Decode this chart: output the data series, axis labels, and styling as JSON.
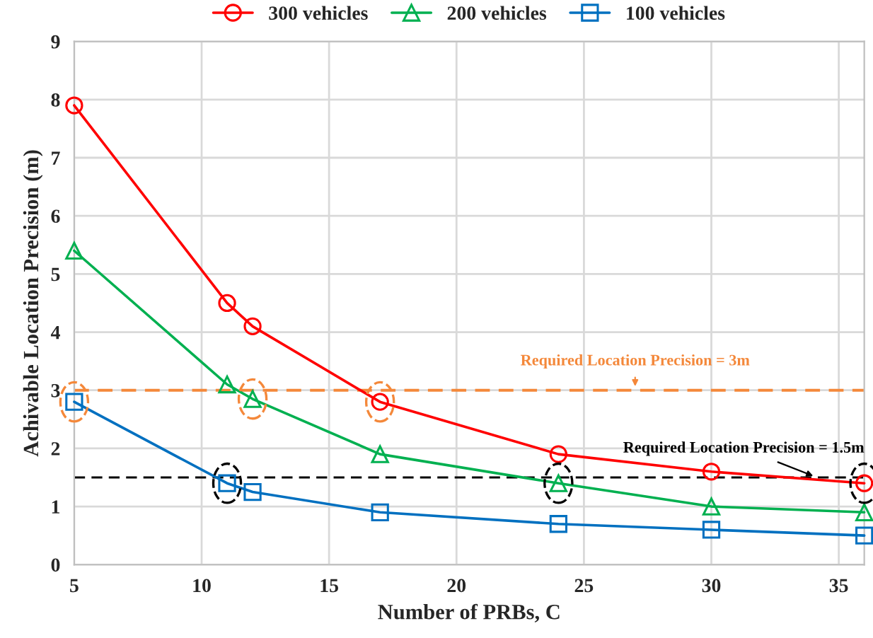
{
  "chart_data": {
    "type": "line",
    "xlabel": "Number of PRBs, C",
    "ylabel": "Achivable Location Precision (m)",
    "series": [
      {
        "name": "300 vehicles",
        "color": "#ff0000",
        "marker": "circle",
        "x": [
          5,
          11,
          12,
          17,
          24,
          30,
          36
        ],
        "values": [
          7.9,
          4.5,
          4.1,
          2.8,
          1.9,
          1.6,
          1.4
        ]
      },
      {
        "name": "200 vehicles",
        "color": "#00b050",
        "marker": "triangle",
        "x": [
          5,
          11,
          12,
          17,
          24,
          30,
          36
        ],
        "values": [
          5.4,
          3.1,
          2.85,
          1.9,
          1.4,
          1.0,
          0.9
        ]
      },
      {
        "name": "100 vehicles",
        "color": "#0070c0",
        "marker": "square",
        "x": [
          5,
          11,
          12,
          17,
          24,
          30,
          36
        ],
        "values": [
          2.8,
          1.4,
          1.25,
          0.9,
          0.7,
          0.6,
          0.5
        ]
      }
    ],
    "xlim": [
      5,
      36
    ],
    "xticks": [
      5,
      10,
      15,
      20,
      25,
      30,
      35
    ],
    "ylim": [
      0,
      9
    ],
    "yticks": [
      0,
      1,
      2,
      3,
      4,
      5,
      6,
      7,
      8,
      9
    ],
    "grid": true,
    "legend": "top",
    "line_style": "solid",
    "ref_lines": [
      {
        "axis": "y",
        "value": 3,
        "label": "Required Location Precision = 3m",
        "color": "#f4883a",
        "line_style": "dashed"
      },
      {
        "axis": "y",
        "value": 1.5,
        "label": "Required Location Precision = 1.5m",
        "color": "#000000",
        "line_style": "dashed"
      }
    ]
  }
}
